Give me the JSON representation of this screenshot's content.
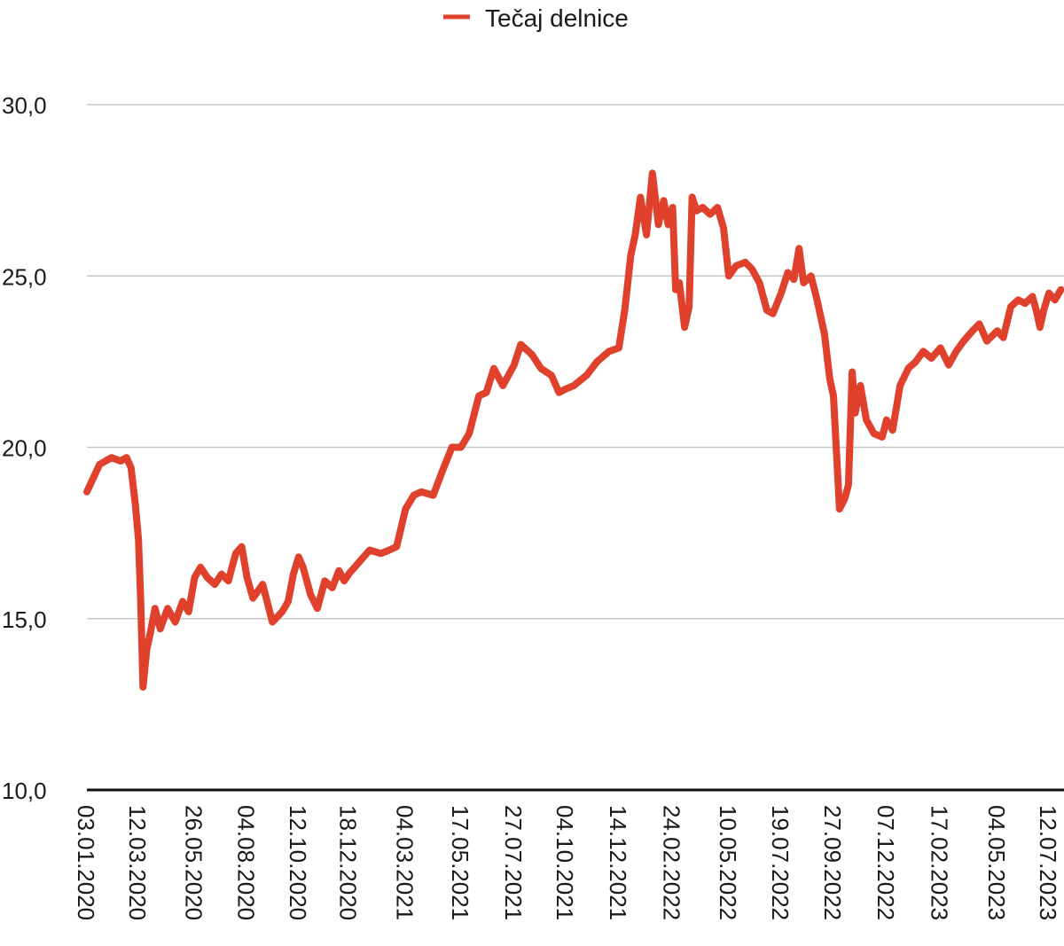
{
  "chart_data": {
    "type": "line",
    "title": "",
    "xlabel": "",
    "ylabel": "",
    "ylim": [
      10,
      30
    ],
    "yticks": [
      "10,0",
      "15,0",
      "20,0",
      "25,0",
      "30,0"
    ],
    "ytick_values": [
      10,
      15,
      20,
      25,
      30
    ],
    "grid": true,
    "legend_position": "top-center",
    "xticks": [
      "03.01.2020",
      "12.03.2020",
      "26.05.2020",
      "04.08.2020",
      "12.10.2020",
      "18.12.2020",
      "04.03.2021",
      "17.05.2021",
      "27.07.2021",
      "04.10.2021",
      "14.12.2021",
      "24.02.2022",
      "10.05.2022",
      "19.07.2022",
      "27.09.2022",
      "07.12.2022",
      "17.02.2023",
      "04.05.2023",
      "12.07.2023"
    ],
    "series": [
      {
        "name": "Tečaj delnice",
        "color": "#e0412c",
        "x": [
          "03.01.2020",
          "20.01.2020",
          "05.02.2020",
          "17.02.2020",
          "25.02.2020",
          "02.03.2020",
          "08.03.2020",
          "12.03.2020",
          "15.03.2020",
          "18.03.2020",
          "23.03.2020",
          "28.03.2020",
          "03.04.2020",
          "10.04.2020",
          "20.04.2020",
          "30.04.2020",
          "10.05.2020",
          "18.05.2020",
          "26.05.2020",
          "03.06.2020",
          "12.06.2020",
          "22.06.2020",
          "01.07.2020",
          "10.07.2020",
          "20.07.2020",
          "28.07.2020",
          "04.08.2020",
          "12.08.2020",
          "25.08.2020",
          "07.09.2020",
          "20.09.2020",
          "28.09.2020",
          "05.10.2020",
          "12.10.2020",
          "18.10.2020",
          "28.10.2020",
          "06.11.2020",
          "16.11.2020",
          "26.11.2020",
          "05.12.2020",
          "12.12.2020",
          "18.12.2020",
          "30.12.2020",
          "15.01.2021",
          "30.01.2021",
          "10.02.2021",
          "20.02.2021",
          "04.03.2021",
          "15.03.2021",
          "25.03.2021",
          "10.04.2021",
          "22.04.2021",
          "05.05.2021",
          "17.05.2021",
          "28.05.2021",
          "10.06.2021",
          "20.06.2021",
          "30.06.2021",
          "12.07.2021",
          "22.07.2021",
          "27.07.2021",
          "05.08.2021",
          "20.08.2021",
          "01.09.2021",
          "15.09.2021",
          "25.09.2021",
          "04.10.2021",
          "15.10.2021",
          "01.11.2021",
          "15.11.2021",
          "01.12.2021",
          "14.12.2021",
          "22.12.2021",
          "30.12.2021",
          "05.01.2022",
          "12.01.2022",
          "20.01.2022",
          "28.01.2022",
          "05.02.2022",
          "12.02.2022",
          "18.02.2022",
          "24.02.2022",
          "28.02.2022",
          "05.03.2022",
          "12.03.2022",
          "18.03.2022",
          "22.03.2022",
          "28.03.2022",
          "05.04.2022",
          "15.04.2022",
          "25.04.2022",
          "03.05.2022",
          "10.05.2022",
          "20.05.2022",
          "01.06.2022",
          "10.06.2022",
          "20.06.2022",
          "30.06.2022",
          "08.07.2022",
          "19.07.2022",
          "28.07.2022",
          "05.08.2022",
          "12.08.2022",
          "18.08.2022",
          "28.08.2022",
          "05.09.2022",
          "15.09.2022",
          "22.09.2022",
          "27.09.2022",
          "05.10.2022",
          "12.10.2022",
          "17.10.2022",
          "22.10.2022",
          "26.10.2022",
          "02.11.2022",
          "10.11.2022",
          "20.11.2022",
          "01.12.2022",
          "07.12.2022",
          "15.12.2022",
          "25.12.2022",
          "05.01.2023",
          "15.01.2023",
          "25.01.2023",
          "05.02.2023",
          "17.02.2023",
          "28.02.2023",
          "10.03.2023",
          "20.03.2023",
          "01.04.2023",
          "10.04.2023",
          "20.04.2023",
          "04.05.2023",
          "12.05.2023",
          "22.05.2023",
          "01.06.2023",
          "10.06.2023",
          "20.06.2023",
          "25.06.2023",
          "30.06.2023",
          "05.07.2023",
          "12.07.2023",
          "20.07.2023",
          "28.07.2023"
        ],
        "values": [
          18.7,
          19.5,
          19.7,
          19.6,
          19.7,
          19.4,
          18.3,
          17.3,
          15.5,
          13.0,
          14.1,
          14.6,
          15.3,
          14.7,
          15.3,
          14.9,
          15.5,
          15.2,
          16.2,
          16.5,
          16.2,
          16.0,
          16.3,
          16.1,
          16.9,
          17.1,
          16.2,
          15.6,
          16.0,
          14.9,
          15.2,
          15.5,
          16.3,
          16.8,
          16.5,
          15.7,
          15.3,
          16.1,
          15.9,
          16.4,
          16.1,
          16.3,
          16.6,
          17.0,
          16.9,
          17.0,
          17.1,
          18.2,
          18.6,
          18.7,
          18.6,
          19.3,
          20.0,
          20.0,
          20.4,
          21.5,
          21.6,
          22.3,
          21.8,
          22.2,
          22.4,
          23.0,
          22.7,
          22.3,
          22.1,
          21.6,
          21.7,
          21.8,
          22.1,
          22.5,
          22.8,
          22.9,
          24.0,
          25.6,
          26.2,
          27.3,
          26.2,
          28.0,
          26.5,
          27.2,
          26.5,
          27.0,
          24.6,
          24.8,
          23.5,
          24.1,
          27.3,
          26.9,
          27.0,
          26.8,
          27.0,
          26.4,
          25.0,
          25.3,
          25.4,
          25.2,
          24.8,
          24.0,
          23.9,
          24.5,
          25.1,
          24.9,
          25.8,
          24.8,
          25.0,
          24.3,
          23.3,
          22.0,
          21.5,
          18.2,
          18.5,
          18.9,
          22.2,
          21.0,
          21.8,
          20.8,
          20.4,
          20.3,
          20.8,
          20.5,
          21.8,
          22.3,
          22.5,
          22.8,
          22.6,
          22.9,
          22.4,
          22.8,
          23.1,
          23.4,
          23.6,
          23.1,
          23.4,
          23.2,
          24.1,
          24.3,
          24.2,
          24.4,
          24.0,
          23.5,
          24.0,
          24.5,
          24.3,
          24.6
        ]
      }
    ]
  }
}
